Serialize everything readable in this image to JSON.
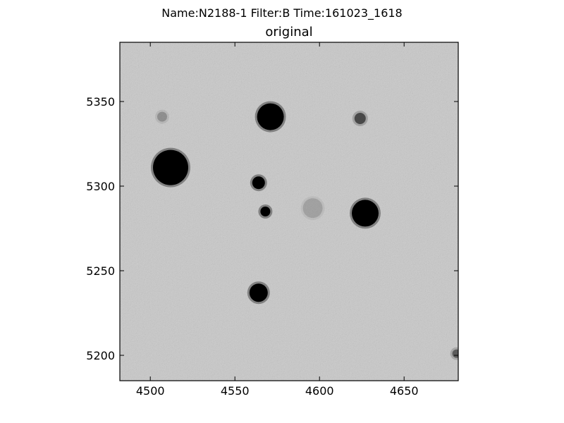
{
  "figure": {
    "suptitle": "Name:N2188-1 Filter:B Time:161023_1618",
    "title": "original"
  },
  "axes": {
    "x_ticks": [
      "4500",
      "4550",
      "4600",
      "4650"
    ],
    "y_ticks": [
      "5350",
      "5300",
      "5250",
      "5200"
    ],
    "xlim": [
      4482,
      4682
    ],
    "ylim": [
      5185,
      5385
    ]
  },
  "image": {
    "colormap": "grayscale (inverted)",
    "background_color": "#c9c9c9",
    "star_color": "#000000"
  },
  "stars": [
    {
      "x": 4571,
      "y": 5341,
      "size": "large"
    },
    {
      "x": 4512,
      "y": 5311,
      "size": "very-large"
    },
    {
      "x": 4564,
      "y": 5302,
      "size": "small"
    },
    {
      "x": 4568,
      "y": 5285,
      "size": "tiny"
    },
    {
      "x": 4627,
      "y": 5284,
      "size": "large"
    },
    {
      "x": 4564,
      "y": 5237,
      "size": "medium"
    },
    {
      "x": 4624,
      "y": 5340,
      "size": "faint"
    },
    {
      "x": 4507,
      "y": 5341,
      "size": "very-faint"
    },
    {
      "x": 4596,
      "y": 5287,
      "size": "diffuse"
    },
    {
      "x": 4681,
      "y": 5201,
      "size": "faint-edge"
    }
  ]
}
